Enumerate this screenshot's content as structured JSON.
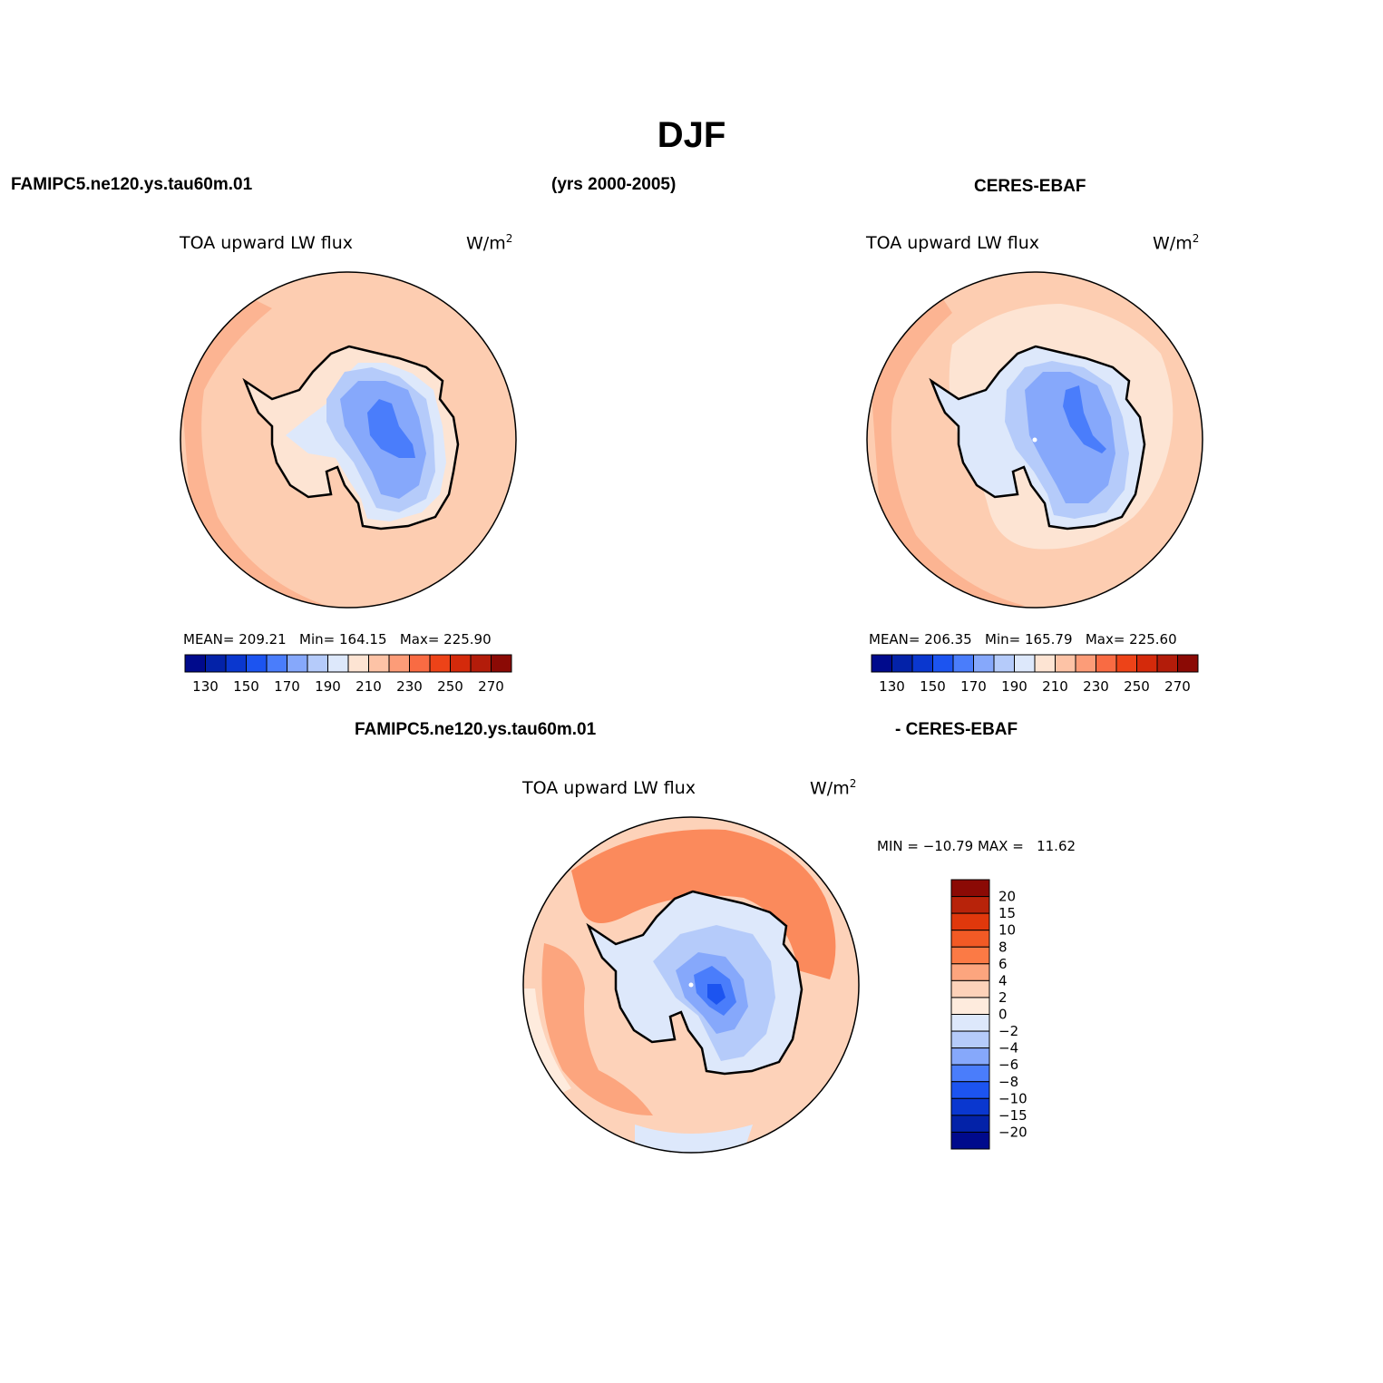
{
  "main_title": "DJF",
  "header": {
    "left": "FAMIPC5.ne120.ys.tau60m.01",
    "center": "(yrs 2000-2005)",
    "right": "CERES-EBAF",
    "bottom_left": "FAMIPC5.ne120.ys.tau60m.01",
    "bottom_right": "- CERES-EBAF"
  },
  "panels": [
    {
      "id": "model",
      "title": "TOA upward LW flux",
      "units_base": "W/m",
      "units_exp": "2",
      "stats": {
        "mean": "MEAN= 209.21",
        "min": "Min= 164.15",
        "max": "Max= 225.90"
      },
      "ocean_fill": "#fdcdb1"
    },
    {
      "id": "obs",
      "title": "TOA upward LW flux",
      "units_base": "W/m",
      "units_exp": "2",
      "stats": {
        "mean": "MEAN= 206.35",
        "min": "Min= 165.79",
        "max": "Max= 225.60"
      },
      "ocean_fill": "#fdcdb1"
    },
    {
      "id": "diff",
      "title": "TOA upward LW flux",
      "units_base": "W/m",
      "units_exp": "2",
      "stats_line": "MIN = −10.79 MAX =   11.62"
    }
  ],
  "colorbar_abs": {
    "colors": [
      "#000a8c",
      "#0322a8",
      "#0a37cf",
      "#1c54f0",
      "#4a7dfb",
      "#86a8fb",
      "#b5cbfa",
      "#dde8fb",
      "#fde4d3",
      "#fdc3a6",
      "#fc9c78",
      "#f96b43",
      "#ed4318",
      "#d42a0b",
      "#b31c0a",
      "#8b0a05"
    ],
    "labels": [
      "130",
      "150",
      "170",
      "190",
      "210",
      "230",
      "250",
      "270"
    ]
  },
  "colorbar_diff": {
    "colors": [
      "#8b0a05",
      "#b8230a",
      "#e0380c",
      "#f25a25",
      "#fb7a45",
      "#fca57e",
      "#fdd2b9",
      "#feebdd",
      "#dde8fb",
      "#b5cbfa",
      "#86a8fb",
      "#4a7dfb",
      "#1c54f0",
      "#0a37cf",
      "#0322a8",
      "#000a8c"
    ],
    "labels": [
      "20",
      "15",
      "10",
      "8",
      "6",
      "4",
      "2",
      "0",
      "−2",
      "−4",
      "−6",
      "−8",
      "−10",
      "−15",
      "−20"
    ]
  },
  "colors": {
    "land_deep": "#4a7dfb",
    "land_mid": "#86a8fb",
    "land_light": "#b5cbfa",
    "land_pale": "#dde8fb",
    "coast_cream": "#fde4d3",
    "ocean_rim": "#fcb492",
    "diff_warm": "#fb8a5c",
    "diff_pale": "#fdd2b9"
  }
}
